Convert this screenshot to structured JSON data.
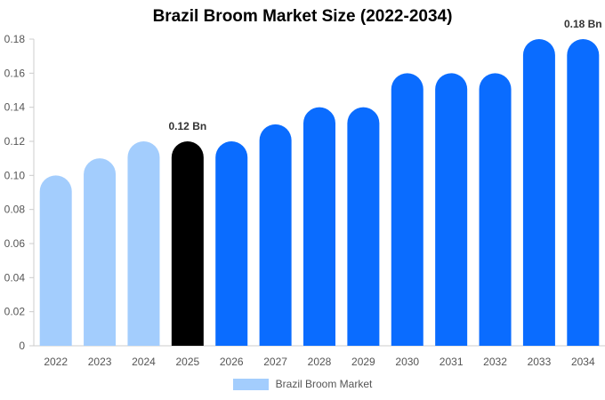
{
  "chart_data": {
    "type": "bar",
    "title": "Brazil Broom Market Size (2022-2034)",
    "categories": [
      "2022",
      "2023",
      "2024",
      "2025",
      "2026",
      "2027",
      "2028",
      "2029",
      "2030",
      "2031",
      "2032",
      "2033",
      "2034"
    ],
    "series": [
      {
        "name": "Brazil Broom Market",
        "values": [
          0.1,
          0.11,
          0.12,
          0.12,
          0.12,
          0.13,
          0.14,
          0.14,
          0.16,
          0.16,
          0.16,
          0.18,
          0.18
        ]
      }
    ],
    "ylim": [
      0,
      0.18
    ],
    "yticks": [
      "0",
      "0.02",
      "0.04",
      "0.06",
      "0.08",
      "0.10",
      "0.12",
      "0.14",
      "0.16",
      "0.18"
    ],
    "bar_colors": [
      "#a3cdfd",
      "#a3cdfd",
      "#a3cdfd",
      "#000000",
      "#0a6cff",
      "#0a6cff",
      "#0a6cff",
      "#0a6cff",
      "#0a6cff",
      "#0a6cff",
      "#0a6cff",
      "#0a6cff",
      "#0a6cff"
    ],
    "data_labels": [
      {
        "category": "2025",
        "text": "0.12 Bn"
      },
      {
        "category": "2034",
        "text": "0.18 Bn"
      }
    ],
    "legend": {
      "label": "Brazil Broom Market",
      "color": "#a3cdfd",
      "position": "bottom"
    },
    "grid": false
  }
}
